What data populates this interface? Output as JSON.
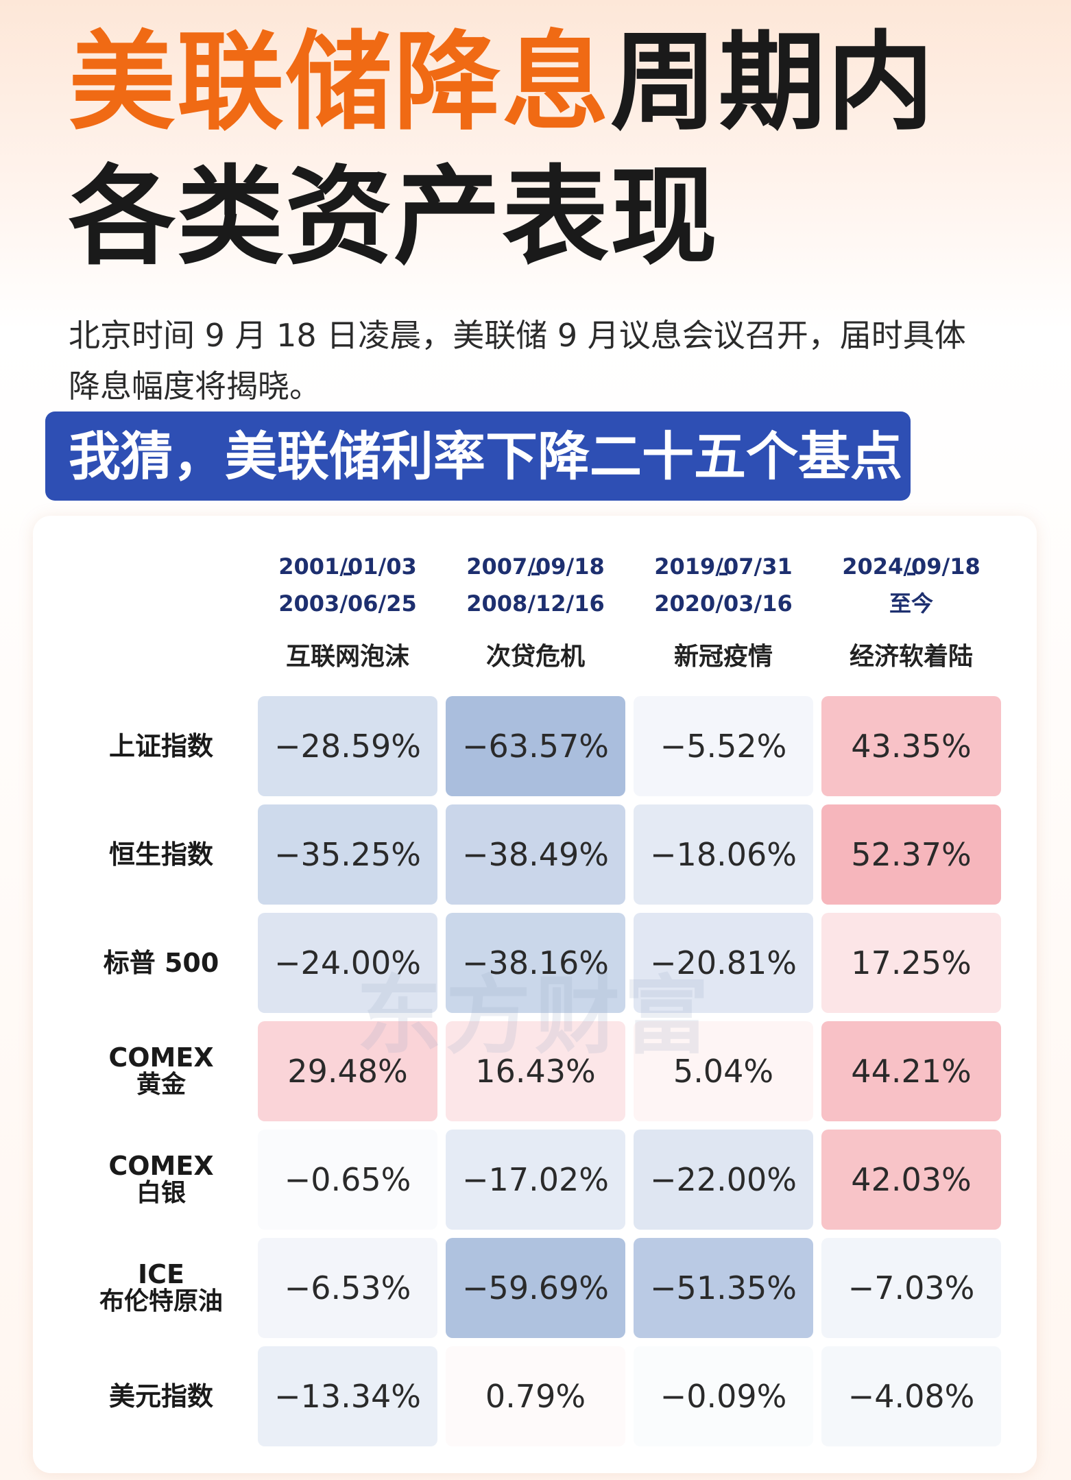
{
  "header": {
    "title_accent": "美联储降息",
    "title_rest": "周期内",
    "title_line2": "各类资产表现",
    "subtitle": "北京时间 9 月 18 日凌晨，美联储 9 月议息会议召开，届时具体降息幅度将揭晓。",
    "banner": "我猜，美联储利率下降二十五个基点"
  },
  "colors": {
    "accent": "#f06a14",
    "banner": "#2e4fb4",
    "positive": "#f0808a",
    "negative": "#6f90c6"
  },
  "watermark": "东方财富",
  "chart_data": {
    "type": "heatmap",
    "columns": [
      {
        "start": "2001/01/03",
        "end": "2003/06/25",
        "event": "互联网泡沫"
      },
      {
        "start": "2007/09/18",
        "end": "2008/12/16",
        "event": "次贷危机"
      },
      {
        "start": "2019/07/31",
        "end": "2020/03/16",
        "event": "新冠疫情"
      },
      {
        "start": "2024/09/18",
        "end": "至今",
        "event": "经济软着陆"
      }
    ],
    "rows": [
      {
        "label": [
          "上证指数"
        ],
        "values": [
          -28.59,
          -63.57,
          -5.52,
          43.35
        ]
      },
      {
        "label": [
          "恒生指数"
        ],
        "values": [
          -35.25,
          -38.49,
          -18.06,
          52.37
        ]
      },
      {
        "label": [
          "标普 500"
        ],
        "values": [
          -24.0,
          -38.16,
          -20.81,
          17.25
        ]
      },
      {
        "label": [
          "COMEX",
          "黄金"
        ],
        "values": [
          29.48,
          16.43,
          5.04,
          44.21
        ]
      },
      {
        "label": [
          "COMEX",
          "白银"
        ],
        "values": [
          -0.65,
          -17.02,
          -22.0,
          42.03
        ]
      },
      {
        "label": [
          "ICE",
          "布伦特原油"
        ],
        "values": [
          -6.53,
          -59.69,
          -51.35,
          -7.03
        ]
      },
      {
        "label": [
          "美元指数"
        ],
        "values": [
          -13.34,
          0.79,
          -0.09,
          -4.08
        ]
      }
    ],
    "unit": "%"
  }
}
